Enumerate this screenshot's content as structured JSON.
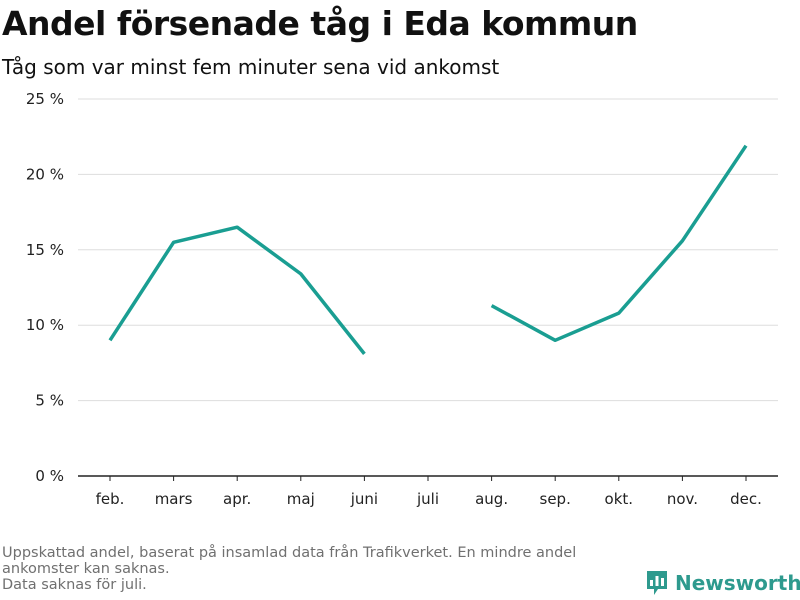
{
  "header": {
    "title": "Andel försenade tåg i Eda kommun",
    "subtitle": "Tåg som var minst fem minuter sena vid ankomst"
  },
  "footer": {
    "note_line1": "Uppskattad andel, baserat på insamlad data från Trafikverket. En mindre andel",
    "note_line2": "ankomster kan saknas.",
    "note_line3": "Data saknas för juli."
  },
  "brand": {
    "name": "Newsworthy",
    "color": "#2e9a8e"
  },
  "chart_data": {
    "type": "line",
    "categories": [
      "feb.",
      "mars",
      "apr.",
      "maj",
      "juni",
      "juli",
      "aug.",
      "sep.",
      "okt.",
      "nov.",
      "dec."
    ],
    "series": [
      {
        "values": [
          9.0,
          15.5,
          16.5,
          13.4,
          8.1,
          null,
          11.3,
          9.0,
          10.8,
          15.6,
          21.9
        ],
        "color": "#1a9e92"
      }
    ],
    "yticks": [
      0,
      5,
      10,
      15,
      20,
      25
    ],
    "ytick_labels": [
      "0 %",
      "5 %",
      "10 %",
      "15 %",
      "20 %",
      "25 %"
    ],
    "ylim": [
      0,
      25
    ],
    "grid": true,
    "xlabel": "",
    "ylabel": ""
  }
}
